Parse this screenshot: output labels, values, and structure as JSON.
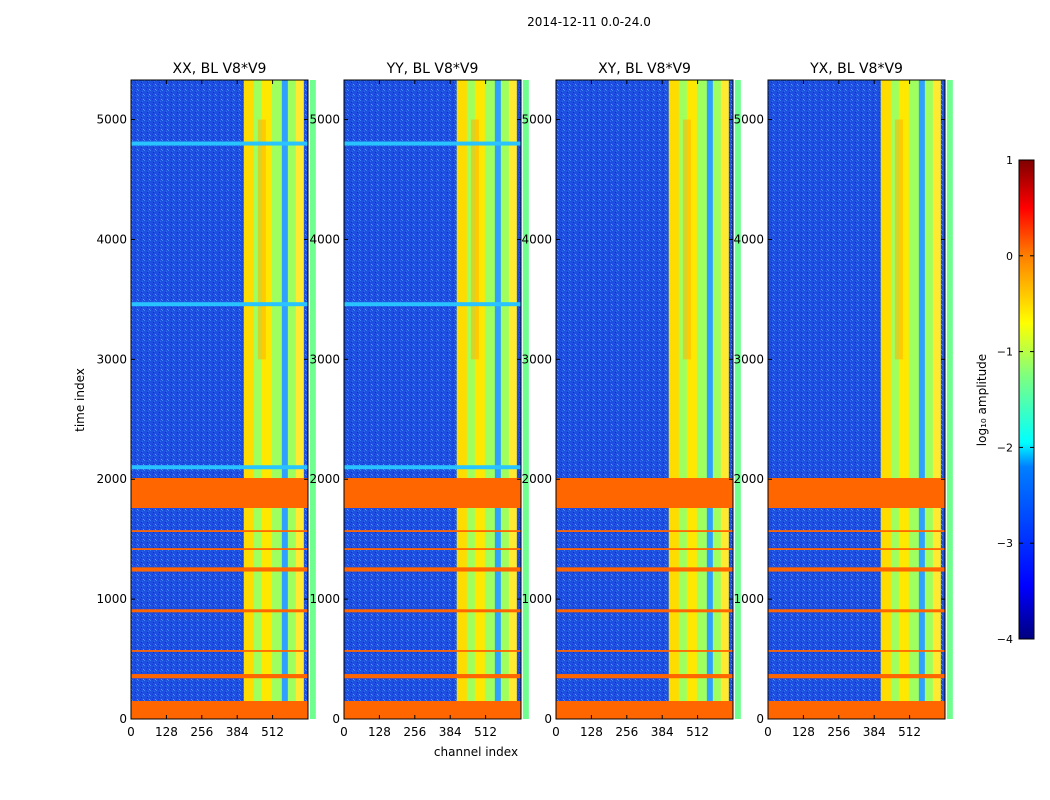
{
  "suptitle": "2014-12-11 0.0-24.0",
  "ylabel": "time index",
  "xlabel": "channel index",
  "chart_data": [
    {
      "type": "heatmap",
      "title": "XX, BL V8*V9",
      "xlim": [
        0,
        640
      ],
      "ylim": [
        0,
        5330
      ],
      "xticks": [
        0,
        128,
        256,
        384,
        512
      ],
      "yticks": [
        0,
        1000,
        2000,
        3000,
        4000,
        5000
      ],
      "flagged_rows": [
        [
          0,
          150
        ],
        [
          1760,
          2010
        ],
        [
          340,
          375
        ],
        [
          560,
          575
        ],
        [
          890,
          915
        ],
        [
          1230,
          1265
        ],
        [
          1410,
          1425
        ],
        [
          1560,
          1575
        ]
      ],
      "bright_channel_band": [
        408,
        605
      ],
      "horizontal_lines": [
        4800,
        3460,
        2100
      ]
    },
    {
      "type": "heatmap",
      "title": "YY, BL V8*V9",
      "xlim": [
        0,
        640
      ],
      "ylim": [
        0,
        5330
      ],
      "xticks": [
        0,
        128,
        256,
        384,
        512
      ],
      "yticks": [
        0,
        1000,
        2000,
        3000,
        4000,
        5000
      ],
      "flagged_rows": [
        [
          0,
          150
        ],
        [
          1760,
          2010
        ],
        [
          340,
          375
        ],
        [
          560,
          575
        ],
        [
          890,
          915
        ],
        [
          1230,
          1265
        ],
        [
          1410,
          1425
        ],
        [
          1560,
          1575
        ]
      ],
      "bright_channel_band": [
        408,
        605
      ],
      "horizontal_lines": [
        4800,
        3460,
        2100
      ]
    },
    {
      "type": "heatmap",
      "title": "XY, BL V8*V9",
      "xlim": [
        0,
        640
      ],
      "ylim": [
        0,
        5330
      ],
      "xticks": [
        0,
        128,
        256,
        384,
        512
      ],
      "yticks": [
        0,
        1000,
        2000,
        3000,
        4000,
        5000
      ],
      "flagged_rows": [
        [
          0,
          150
        ],
        [
          1760,
          2010
        ],
        [
          340,
          375
        ],
        [
          560,
          575
        ],
        [
          890,
          915
        ],
        [
          1230,
          1265
        ],
        [
          1410,
          1425
        ],
        [
          1560,
          1575
        ]
      ],
      "bright_channel_band": [
        408,
        605
      ],
      "horizontal_lines": []
    },
    {
      "type": "heatmap",
      "title": "YX, BL V8*V9",
      "xlim": [
        0,
        640
      ],
      "ylim": [
        0,
        5330
      ],
      "xticks": [
        0,
        128,
        256,
        384,
        512
      ],
      "yticks": [
        0,
        1000,
        2000,
        3000,
        4000,
        5000
      ],
      "flagged_rows": [
        [
          0,
          150
        ],
        [
          1760,
          2010
        ],
        [
          340,
          375
        ],
        [
          560,
          575
        ],
        [
          890,
          915
        ],
        [
          1230,
          1265
        ],
        [
          1410,
          1425
        ],
        [
          1560,
          1575
        ]
      ],
      "bright_channel_band": [
        408,
        605
      ],
      "horizontal_lines": []
    }
  ],
  "colorbar": {
    "label": "log₁₀ amplitude",
    "range": [
      -4,
      1
    ],
    "ticks": [
      -4,
      -3,
      -2,
      -1,
      0,
      1
    ],
    "tick_labels": [
      "−4",
      "−3",
      "−2",
      "−1",
      "0",
      "1"
    ],
    "colors": [
      "#00007f",
      "#0000ff",
      "#007fff",
      "#00ffff",
      "#7fff7f",
      "#ffff00",
      "#ff7f00",
      "#ff0000",
      "#7f0000"
    ],
    "flag_color": "#ff6600"
  }
}
